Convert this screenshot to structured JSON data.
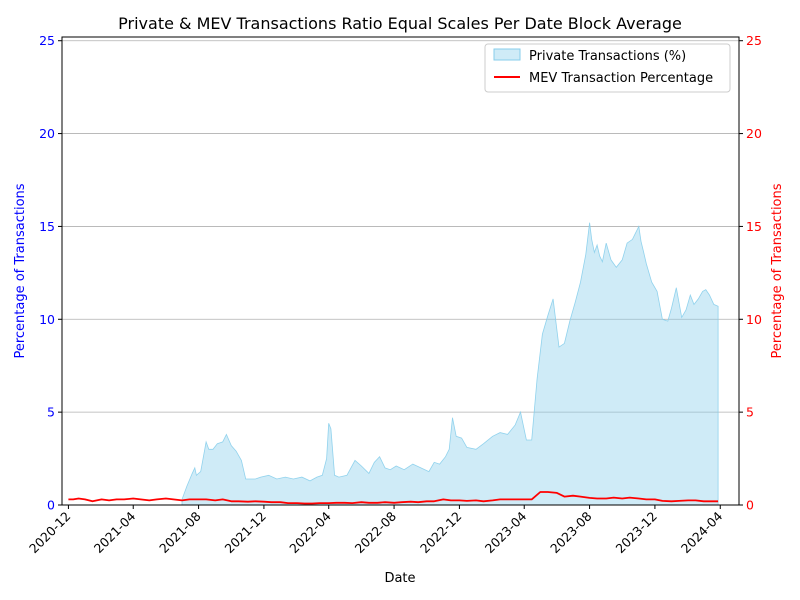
{
  "chart_data": {
    "type": "area",
    "title": "Private & MEV Transactions Ratio Equal Scales Per Date Block Average",
    "xlabel": "Date",
    "ylabel_left": "Percentage of Transactions",
    "ylabel_right": "Percentage of Transactions",
    "x_tick_labels": [
      "2020-12",
      "2021-04",
      "2021-08",
      "2021-12",
      "2022-04",
      "2022-08",
      "2022-12",
      "2023-04",
      "2023-08",
      "2023-12",
      "2024-04"
    ],
    "y_ticks_left": [
      0,
      5,
      10,
      15,
      20,
      25
    ],
    "y_ticks_right": [
      0,
      5,
      10,
      15,
      20,
      25
    ],
    "xlim": [
      "2020-11-19",
      "2024-05-06"
    ],
    "ylim_left": [
      0,
      25.2
    ],
    "ylim_right": [
      0,
      25.2
    ],
    "grid": "horizontal",
    "legend_position": "top-right",
    "colors": {
      "private_fill": "#87ceeb",
      "private_edge": "#87ceeb",
      "mev_line": "#ff0000",
      "left_axis": "#0000ff",
      "right_axis": "#ff0000",
      "grid": "#b0b0b0"
    },
    "series": [
      {
        "name": "Private Transactions (%)",
        "kind": "area",
        "x": [
          "2021-07-01",
          "2021-07-10",
          "2021-07-20",
          "2021-07-25",
          "2021-07-28",
          "2021-08-05",
          "2021-08-15",
          "2021-08-20",
          "2021-08-28",
          "2021-09-05",
          "2021-09-15",
          "2021-09-22",
          "2021-10-01",
          "2021-10-10",
          "2021-10-20",
          "2021-10-28",
          "2021-11-05",
          "2021-11-15",
          "2021-11-25",
          "2021-12-10",
          "2021-12-25",
          "2022-01-10",
          "2022-01-25",
          "2022-02-10",
          "2022-02-25",
          "2022-03-10",
          "2022-03-20",
          "2022-03-28",
          "2022-04-01",
          "2022-04-05",
          "2022-04-12",
          "2022-04-20",
          "2022-05-05",
          "2022-05-20",
          "2022-06-01",
          "2022-06-15",
          "2022-06-25",
          "2022-07-05",
          "2022-07-15",
          "2022-07-25",
          "2022-08-05",
          "2022-08-20",
          "2022-09-05",
          "2022-09-20",
          "2022-10-05",
          "2022-10-15",
          "2022-10-25",
          "2022-11-05",
          "2022-11-12",
          "2022-11-18",
          "2022-11-25",
          "2022-12-05",
          "2022-12-15",
          "2023-01-01",
          "2023-01-15",
          "2023-02-01",
          "2023-02-15",
          "2023-03-01",
          "2023-03-15",
          "2023-03-25",
          "2023-04-05",
          "2023-04-15",
          "2023-04-25",
          "2023-05-05",
          "2023-05-15",
          "2023-05-25",
          "2023-06-05",
          "2023-06-15",
          "2023-06-25",
          "2023-07-05",
          "2023-07-15",
          "2023-07-25",
          "2023-08-01",
          "2023-08-05",
          "2023-08-10",
          "2023-08-15",
          "2023-08-20",
          "2023-08-25",
          "2023-09-01",
          "2023-09-10",
          "2023-09-20",
          "2023-10-01",
          "2023-10-10",
          "2023-10-20",
          "2023-11-01",
          "2023-11-05",
          "2023-11-10",
          "2023-11-15",
          "2023-11-25",
          "2023-12-05",
          "2023-12-15",
          "2023-12-25",
          "2024-01-01",
          "2024-01-10",
          "2024-01-20",
          "2024-01-28",
          "2024-02-05",
          "2024-02-12",
          "2024-02-20",
          "2024-02-28",
          "2024-03-05",
          "2024-03-12",
          "2024-03-20",
          "2024-03-28"
        ],
        "values": [
          0.3,
          1.0,
          1.7,
          2.0,
          1.6,
          1.8,
          3.4,
          3.0,
          3.0,
          3.3,
          3.4,
          3.8,
          3.2,
          2.9,
          2.4,
          1.4,
          1.4,
          1.4,
          1.5,
          1.6,
          1.4,
          1.5,
          1.4,
          1.5,
          1.3,
          1.5,
          1.6,
          2.5,
          4.4,
          4.1,
          1.6,
          1.5,
          1.6,
          2.4,
          2.1,
          1.7,
          2.3,
          2.6,
          2.0,
          1.9,
          2.1,
          1.9,
          2.2,
          2.0,
          1.8,
          2.3,
          2.2,
          2.6,
          3.0,
          4.7,
          3.7,
          3.6,
          3.1,
          3.0,
          3.3,
          3.7,
          3.9,
          3.8,
          4.3,
          5.0,
          3.5,
          3.5,
          6.8,
          9.2,
          10.2,
          11.1,
          8.5,
          8.7,
          9.9,
          10.9,
          12.0,
          13.5,
          15.2,
          14.3,
          13.6,
          14.0,
          13.4,
          13.1,
          14.1,
          13.2,
          12.8,
          13.2,
          14.1,
          14.3,
          15.0,
          14.2,
          13.6,
          13.0,
          12.0,
          11.5,
          10.0,
          9.9,
          10.6,
          11.7,
          10.1,
          10.5,
          11.3,
          10.8,
          11.1,
          11.5,
          11.6,
          11.3,
          10.8,
          10.7
        ]
      },
      {
        "name": "MEV Transaction Percentage",
        "kind": "line",
        "x": [
          "2020-12-01",
          "2020-12-10",
          "2020-12-20",
          "2021-01-01",
          "2021-01-15",
          "2021-02-01",
          "2021-02-15",
          "2021-03-01",
          "2021-03-15",
          "2021-04-01",
          "2021-04-15",
          "2021-05-01",
          "2021-05-15",
          "2021-06-01",
          "2021-06-15",
          "2021-07-01",
          "2021-07-15",
          "2021-08-01",
          "2021-08-15",
          "2021-09-01",
          "2021-09-15",
          "2021-10-01",
          "2021-10-15",
          "2021-11-01",
          "2021-11-15",
          "2021-12-01",
          "2021-12-15",
          "2022-01-01",
          "2022-01-15",
          "2022-02-01",
          "2022-02-15",
          "2022-03-01",
          "2022-03-15",
          "2022-04-01",
          "2022-04-15",
          "2022-05-01",
          "2022-05-15",
          "2022-06-01",
          "2022-06-15",
          "2022-07-01",
          "2022-07-15",
          "2022-08-01",
          "2022-08-15",
          "2022-09-01",
          "2022-09-15",
          "2022-10-01",
          "2022-10-15",
          "2022-11-01",
          "2022-11-15",
          "2022-12-01",
          "2022-12-15",
          "2023-01-01",
          "2023-01-15",
          "2023-02-01",
          "2023-02-15",
          "2023-03-01",
          "2023-03-15",
          "2023-04-01",
          "2023-04-15",
          "2023-05-01",
          "2023-05-15",
          "2023-06-01",
          "2023-06-15",
          "2023-07-01",
          "2023-07-15",
          "2023-08-01",
          "2023-08-15",
          "2023-09-01",
          "2023-09-15",
          "2023-10-01",
          "2023-10-15",
          "2023-11-01",
          "2023-11-15",
          "2023-12-01",
          "2023-12-15",
          "2024-01-01",
          "2024-01-15",
          "2024-02-01",
          "2024-02-15",
          "2024-03-01",
          "2024-03-15",
          "2024-03-28"
        ],
        "values": [
          0.3,
          0.3,
          0.35,
          0.3,
          0.2,
          0.3,
          0.25,
          0.3,
          0.3,
          0.35,
          0.3,
          0.25,
          0.3,
          0.35,
          0.3,
          0.25,
          0.3,
          0.3,
          0.3,
          0.25,
          0.3,
          0.2,
          0.2,
          0.18,
          0.2,
          0.18,
          0.15,
          0.15,
          0.1,
          0.1,
          0.08,
          0.08,
          0.1,
          0.1,
          0.12,
          0.12,
          0.1,
          0.15,
          0.12,
          0.12,
          0.15,
          0.12,
          0.15,
          0.18,
          0.15,
          0.2,
          0.2,
          0.3,
          0.25,
          0.25,
          0.22,
          0.25,
          0.2,
          0.25,
          0.3,
          0.3,
          0.3,
          0.3,
          0.3,
          0.7,
          0.7,
          0.65,
          0.45,
          0.5,
          0.45,
          0.38,
          0.35,
          0.35,
          0.4,
          0.35,
          0.4,
          0.35,
          0.3,
          0.3,
          0.22,
          0.2,
          0.22,
          0.25,
          0.25,
          0.2,
          0.2,
          0.2
        ]
      }
    ]
  }
}
